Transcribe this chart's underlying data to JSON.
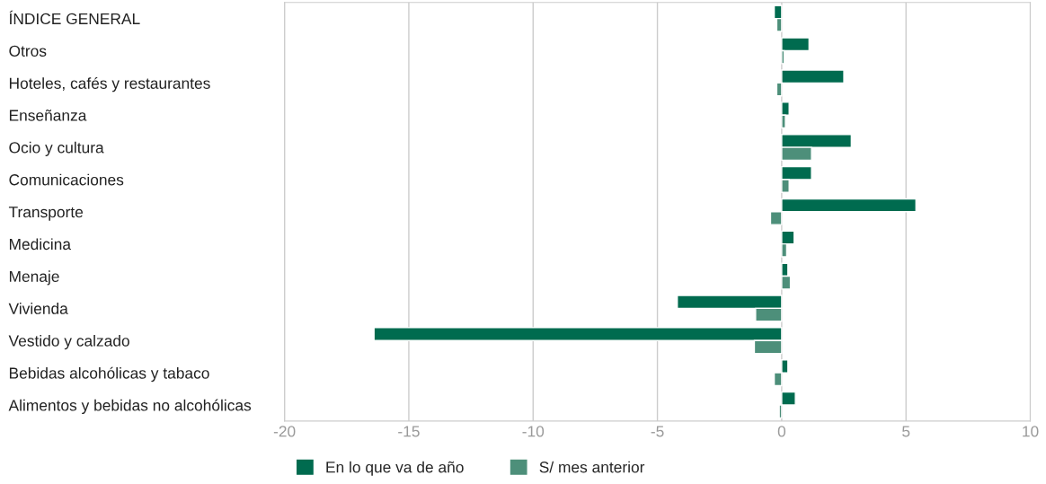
{
  "chart_data": {
    "type": "bar",
    "orientation": "horizontal",
    "categories": [
      "ÍNDICE GENERAL",
      "Otros",
      "Hoteles, cafés y restaurantes",
      "Enseñanza",
      "Ocio y cultura",
      "Comunicaciones",
      "Transporte",
      "Medicina",
      "Menaje",
      "Vivienda",
      "Vestido y calzado",
      "Bebidas alcohólicas y tabaco",
      "Alimentos y bebidas no alcohólicas"
    ],
    "series": [
      {
        "name": "En lo que va de año",
        "color": "#006b4f",
        "values": [
          -0.3,
          1.1,
          2.5,
          0.3,
          2.8,
          1.2,
          5.4,
          0.5,
          0.25,
          -4.2,
          -16.4,
          0.25,
          0.55
        ]
      },
      {
        "name": "S/ mes anterior",
        "color": "#4d8f7a",
        "values": [
          -0.2,
          0.1,
          -0.2,
          0.15,
          1.2,
          0.3,
          -0.45,
          0.2,
          0.35,
          -1.05,
          -1.1,
          -0.3,
          -0.1
        ]
      }
    ],
    "xlim": [
      -20,
      10
    ],
    "xticks": [
      -20,
      -15,
      -10,
      -5,
      0,
      5,
      10
    ],
    "grid": "x",
    "legend": "bottom"
  }
}
